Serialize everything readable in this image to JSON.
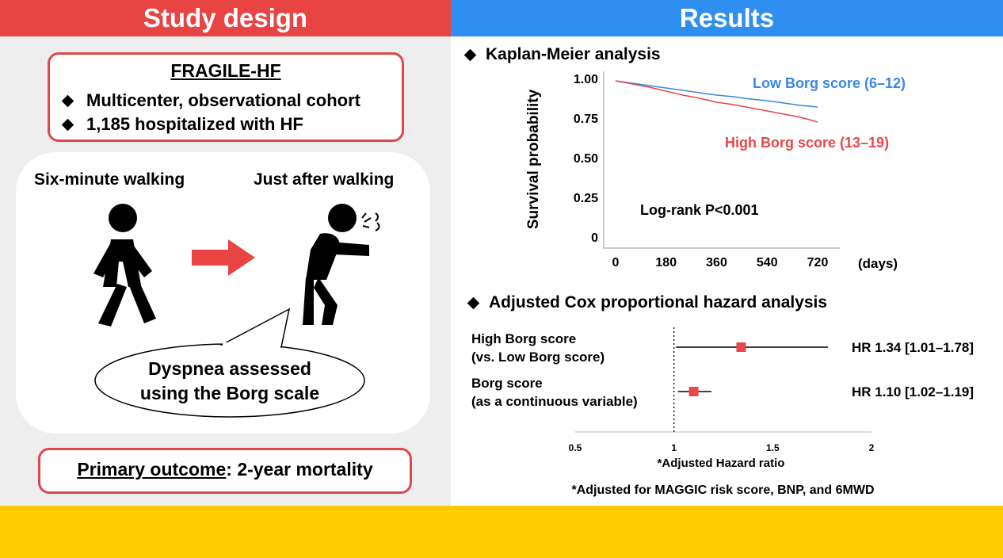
{
  "header": {
    "left": "Study design",
    "right": "Results"
  },
  "study": {
    "cohort_title": "FRAGILE-HF",
    "bullets": [
      "Multicenter, observational cohort",
      "1,185 hospitalized with HF"
    ],
    "walking_label": "Six-minute walking",
    "after_label": "Just after walking",
    "speech_line1": "Dyspnea assessed",
    "speech_line2": "using the Borg scale",
    "outcome_label": "Primary outcome",
    "outcome_value": ": 2-year mortality"
  },
  "km": {
    "section_title": "Kaplan-Meier analysis",
    "log_rank": "Log-rank P<0.001",
    "low_label": "Low Borg score (6–12)",
    "high_label": "High Borg score (13–19)",
    "low_color": "#3a86e8",
    "high_color": "#e8474b"
  },
  "cox": {
    "section_title": "Adjusted Cox proportional hazard analysis",
    "rows": [
      {
        "label1": "High Borg score",
        "label2": "(vs. Low Borg score)",
        "hr": 1.34,
        "lo": 1.01,
        "hi": 1.78,
        "text": "HR 1.34 [1.01–1.78]"
      },
      {
        "label1": "Borg score",
        "label2": "(as a continuous variable)",
        "hr": 1.1,
        "lo": 1.02,
        "hi": 1.19,
        "text": "HR 1.10 [1.02–1.19]"
      }
    ],
    "x_ticks": [
      "0.5",
      "1",
      "1.5",
      "2"
    ],
    "x_label": "*Adjusted Hazard ratio",
    "footnote": "*Adjusted for MAGGIC risk score, BNP, and 6MWD",
    "marker_color": "#e8474b"
  },
  "chart_data": [
    {
      "type": "line",
      "title": "",
      "xlabel": "(days)",
      "ylabel": "Survival probability",
      "x_ticks": [
        "0",
        "180",
        "360",
        "540",
        "720"
      ],
      "y_ticks": [
        "1.00",
        "0.75",
        "0.50",
        "0.25",
        "0"
      ],
      "xlim": [
        0,
        720
      ],
      "ylim": [
        0,
        1
      ],
      "series": [
        {
          "name": "Low Borg score (6–12)",
          "x": [
            0,
            60,
            120,
            180,
            240,
            300,
            360,
            420,
            480,
            540,
            600,
            660,
            720
          ],
          "y": [
            1.0,
            0.985,
            0.97,
            0.955,
            0.94,
            0.925,
            0.91,
            0.9,
            0.885,
            0.875,
            0.86,
            0.845,
            0.835
          ]
        },
        {
          "name": "High Borg score (13–19)",
          "x": [
            0,
            60,
            120,
            180,
            240,
            300,
            360,
            420,
            480,
            540,
            600,
            660,
            720
          ],
          "y": [
            1.0,
            0.98,
            0.96,
            0.935,
            0.91,
            0.89,
            0.865,
            0.85,
            0.83,
            0.81,
            0.79,
            0.77,
            0.74
          ]
        }
      ]
    },
    {
      "type": "scatter",
      "title": "",
      "xlabel": "*Adjusted Hazard ratio",
      "x_ticks": [
        "0.5",
        "1",
        "1.5",
        "2"
      ],
      "xlim": [
        0.5,
        2
      ],
      "reference_line": 1,
      "categories": [
        "High Borg score (vs. Low Borg score)",
        "Borg score (as a continuous variable)"
      ],
      "series": [
        {
          "name": "",
          "values": [
            1.34,
            1.1
          ],
          "ci_low": [
            1.01,
            1.02
          ],
          "ci_high": [
            1.78,
            1.19
          ]
        }
      ]
    }
  ]
}
